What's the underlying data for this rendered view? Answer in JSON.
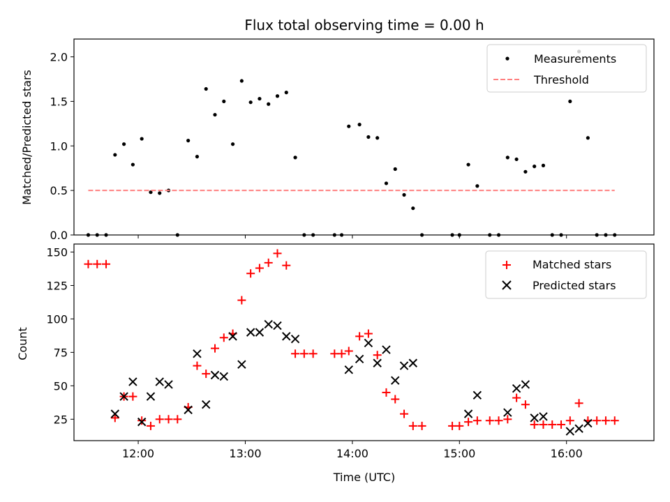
{
  "chart_data": [
    {
      "type": "scatter",
      "title": "Flux total observing time = 0.00 h",
      "xlabel": "",
      "ylabel": "Matched/Predicted stars",
      "ylim": [
        0,
        2.2
      ],
      "xlim": [
        "11:24",
        "16:49"
      ],
      "yticks": [
        "0.0",
        "0.5",
        "1.0",
        "1.5",
        "2.0"
      ],
      "legend_position": "top-right",
      "series": [
        {
          "name": "Measurements",
          "color": "#000000",
          "marker": "dot",
          "points": [
            [
              "11:32",
              0.0
            ],
            [
              "11:37",
              0.0
            ],
            [
              "11:42",
              0.0
            ],
            [
              "11:47",
              0.9
            ],
            [
              "11:52",
              1.02
            ],
            [
              "11:57",
              0.79
            ],
            [
              "12:02",
              1.08
            ],
            [
              "12:07",
              0.48
            ],
            [
              "12:12",
              0.47
            ],
            [
              "12:17",
              0.5
            ],
            [
              "12:22",
              0.0
            ],
            [
              "12:28",
              1.06
            ],
            [
              "12:33",
              0.88
            ],
            [
              "12:38",
              1.64
            ],
            [
              "12:43",
              1.35
            ],
            [
              "12:48",
              1.5
            ],
            [
              "12:53",
              1.02
            ],
            [
              "12:58",
              1.73
            ],
            [
              "13:03",
              1.49
            ],
            [
              "13:08",
              1.53
            ],
            [
              "13:13",
              1.47
            ],
            [
              "13:18",
              1.56
            ],
            [
              "13:23",
              1.6
            ],
            [
              "13:28",
              0.87
            ],
            [
              "13:33",
              0.0
            ],
            [
              "13:38",
              0.0
            ],
            [
              "13:50",
              0.0
            ],
            [
              "13:54",
              0.0
            ],
            [
              "13:58",
              1.22
            ],
            [
              "14:04",
              1.24
            ],
            [
              "14:09",
              1.1
            ],
            [
              "14:14",
              1.09
            ],
            [
              "14:19",
              0.58
            ],
            [
              "14:24",
              0.74
            ],
            [
              "14:29",
              0.45
            ],
            [
              "14:34",
              0.3
            ],
            [
              "14:39",
              0.0
            ],
            [
              "14:56",
              0.0
            ],
            [
              "15:00",
              0.0
            ],
            [
              "15:05",
              0.79
            ],
            [
              "15:10",
              0.55
            ],
            [
              "15:17",
              0.0
            ],
            [
              "15:22",
              0.0
            ],
            [
              "15:27",
              0.87
            ],
            [
              "15:32",
              0.85
            ],
            [
              "15:37",
              0.71
            ],
            [
              "15:42",
              0.77
            ],
            [
              "15:47",
              0.78
            ],
            [
              "15:52",
              0.0
            ],
            [
              "15:57",
              0.0
            ],
            [
              "16:02",
              1.5
            ],
            [
              "16:07",
              2.06
            ],
            [
              "16:12",
              1.09
            ],
            [
              "16:17",
              0.0
            ],
            [
              "16:22",
              0.0
            ],
            [
              "16:27",
              0.0
            ]
          ]
        },
        {
          "name": "Threshold",
          "color": "#ff7f7f",
          "marker": "dashed-line",
          "points": [
            [
              "11:32",
              0.5
            ],
            [
              "16:27",
              0.5
            ]
          ]
        }
      ]
    },
    {
      "type": "scatter",
      "title": "",
      "xlabel": "Time (UTC)",
      "ylabel": "Count",
      "ylim": [
        9,
        156
      ],
      "xlim": [
        "11:24",
        "16:49"
      ],
      "xticks": [
        "12:00",
        "13:00",
        "14:00",
        "15:00",
        "16:00"
      ],
      "yticks": [
        "25",
        "50",
        "75",
        "100",
        "125",
        "150"
      ],
      "legend_position": "top-right",
      "series": [
        {
          "name": "Matched stars",
          "color": "#ff0000",
          "marker": "plus",
          "points": [
            [
              "11:32",
              141
            ],
            [
              "11:37",
              141
            ],
            [
              "11:42",
              141
            ],
            [
              "11:47",
              26
            ],
            [
              "11:52",
              42
            ],
            [
              "11:57",
              42
            ],
            [
              "12:02",
              24
            ],
            [
              "12:07",
              20
            ],
            [
              "12:12",
              25
            ],
            [
              "12:17",
              25
            ],
            [
              "12:22",
              25
            ],
            [
              "12:28",
              34
            ],
            [
              "12:33",
              65
            ],
            [
              "12:38",
              59
            ],
            [
              "12:43",
              78
            ],
            [
              "12:48",
              86
            ],
            [
              "12:53",
              89
            ],
            [
              "12:58",
              114
            ],
            [
              "13:03",
              134
            ],
            [
              "13:08",
              138
            ],
            [
              "13:13",
              142
            ],
            [
              "13:18",
              149
            ],
            [
              "13:23",
              140
            ],
            [
              "13:28",
              74
            ],
            [
              "13:33",
              74
            ],
            [
              "13:38",
              74
            ],
            [
              "13:50",
              74
            ],
            [
              "13:54",
              74
            ],
            [
              "13:58",
              76
            ],
            [
              "14:04",
              87
            ],
            [
              "14:09",
              89
            ],
            [
              "14:14",
              73
            ],
            [
              "14:19",
              45
            ],
            [
              "14:24",
              40
            ],
            [
              "14:29",
              29
            ],
            [
              "14:34",
              20
            ],
            [
              "14:39",
              20
            ],
            [
              "14:56",
              20
            ],
            [
              "15:00",
              20
            ],
            [
              "15:05",
              23
            ],
            [
              "15:10",
              24
            ],
            [
              "15:17",
              24
            ],
            [
              "15:22",
              24
            ],
            [
              "15:27",
              25
            ],
            [
              "15:32",
              41
            ],
            [
              "15:37",
              36
            ],
            [
              "15:42",
              21
            ],
            [
              "15:47",
              21
            ],
            [
              "15:52",
              21
            ],
            [
              "15:57",
              21
            ],
            [
              "16:02",
              24
            ],
            [
              "16:07",
              37
            ],
            [
              "16:12",
              24
            ],
            [
              "16:17",
              24
            ],
            [
              "16:22",
              24
            ],
            [
              "16:27",
              24
            ]
          ]
        },
        {
          "name": "Predicted stars",
          "color": "#000000",
          "marker": "x",
          "points": [
            [
              "11:47",
              29
            ],
            [
              "11:52",
              42
            ],
            [
              "11:57",
              53
            ],
            [
              "12:02",
              23
            ],
            [
              "12:07",
              42
            ],
            [
              "12:12",
              53
            ],
            [
              "12:17",
              51
            ],
            [
              "12:28",
              32
            ],
            [
              "12:33",
              74
            ],
            [
              "12:38",
              36
            ],
            [
              "12:43",
              58
            ],
            [
              "12:48",
              57
            ],
            [
              "12:53",
              87
            ],
            [
              "12:58",
              66
            ],
            [
              "13:03",
              90
            ],
            [
              "13:08",
              90
            ],
            [
              "13:13",
              96
            ],
            [
              "13:18",
              95
            ],
            [
              "13:23",
              87
            ],
            [
              "13:28",
              85
            ],
            [
              "13:58",
              62
            ],
            [
              "14:04",
              70
            ],
            [
              "14:09",
              82
            ],
            [
              "14:14",
              67
            ],
            [
              "14:19",
              77
            ],
            [
              "14:24",
              54
            ],
            [
              "14:29",
              65
            ],
            [
              "14:34",
              67
            ],
            [
              "15:05",
              29
            ],
            [
              "15:10",
              43
            ],
            [
              "15:27",
              30
            ],
            [
              "15:32",
              48
            ],
            [
              "15:37",
              51
            ],
            [
              "15:42",
              26
            ],
            [
              "15:47",
              27
            ],
            [
              "16:02",
              16
            ],
            [
              "16:07",
              18
            ],
            [
              "16:12",
              22
            ]
          ]
        }
      ]
    }
  ]
}
